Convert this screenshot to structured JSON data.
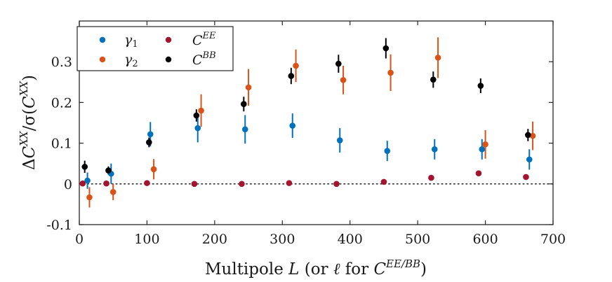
{
  "chart_data": {
    "type": "scatter",
    "title": "",
    "xlabel": "Multipole L (or ℓ for C^{EE/BB})",
    "xlabel_parts": {
      "prefix": "Multipole ",
      "var": "L",
      "middle": " (or ",
      "ell": "ℓ",
      "for": " for ",
      "C": "C",
      "sup": "EE/BB",
      "suffix": ")"
    },
    "ylabel": "ΔC^{XX}/σ(C^{XX})",
    "ylabel_parts": {
      "delta": "Δ",
      "C": "C",
      "sup": "XX",
      "slash": "/σ(",
      "C2": "C",
      "sup2": "XX",
      "close": ")"
    },
    "xlim": [
      0,
      700
    ],
    "ylim": [
      -0.1,
      0.4
    ],
    "xticks": [
      0,
      100,
      200,
      300,
      400,
      500,
      600,
      700
    ],
    "yticks": [
      -0.1,
      0,
      0.1,
      0.2,
      0.3
    ],
    "ytick_labels": [
      "-0.1",
      "0",
      "0.1",
      "0.2",
      "0.3"
    ],
    "zero_line": "dotted",
    "legend_position": "top-left",
    "series": [
      {
        "name": "γ1",
        "label_base": "γ",
        "label_sub": "1",
        "color": "#0072BD",
        "x": [
          12,
          47,
          105,
          175,
          245,
          315,
          385,
          455,
          525,
          595,
          665
        ],
        "y": [
          0.008,
          0.025,
          0.122,
          0.137,
          0.134,
          0.143,
          0.107,
          0.081,
          0.085,
          0.085,
          0.06
        ],
        "err": [
          0.02,
          0.025,
          0.03,
          0.035,
          0.035,
          0.03,
          0.03,
          0.025,
          0.025,
          0.025,
          0.025
        ]
      },
      {
        "name": "γ2",
        "label_base": "γ",
        "label_sub": "2",
        "color": "#D95319",
        "x": [
          15,
          50,
          110,
          180,
          250,
          320,
          390,
          460,
          530,
          600,
          670
        ],
        "y": [
          -0.033,
          -0.02,
          0.036,
          0.18,
          0.237,
          0.29,
          0.255,
          0.273,
          0.31,
          0.097,
          0.118
        ],
        "err": [
          0.025,
          0.02,
          0.025,
          0.04,
          0.045,
          0.04,
          0.035,
          0.045,
          0.05,
          0.035,
          0.035
        ]
      },
      {
        "name": "C^EE",
        "label_base": "C",
        "label_sup": "EE",
        "color": "#A2142F",
        "x": [
          5,
          40,
          100,
          170,
          240,
          310,
          380,
          450,
          520,
          590,
          660
        ],
        "y": [
          0.001,
          0.001,
          0.002,
          0.0,
          0.0,
          0.002,
          0.0,
          0.005,
          0.015,
          0.026,
          0.017
        ],
        "err": [
          0,
          0,
          0,
          0,
          0,
          0,
          0,
          0,
          0,
          0,
          0
        ]
      },
      {
        "name": "C^BB",
        "label_base": "C",
        "label_sup": "BB",
        "color": "#000000",
        "x": [
          8,
          43,
          103,
          173,
          243,
          313,
          383,
          453,
          523,
          593,
          663
        ],
        "y": [
          0.042,
          0.033,
          0.102,
          0.168,
          0.196,
          0.265,
          0.295,
          0.333,
          0.256,
          0.241,
          0.12
        ],
        "err": [
          0.015,
          0.01,
          0.012,
          0.015,
          0.018,
          0.02,
          0.022,
          0.025,
          0.02,
          0.018,
          0.015
        ]
      }
    ]
  }
}
